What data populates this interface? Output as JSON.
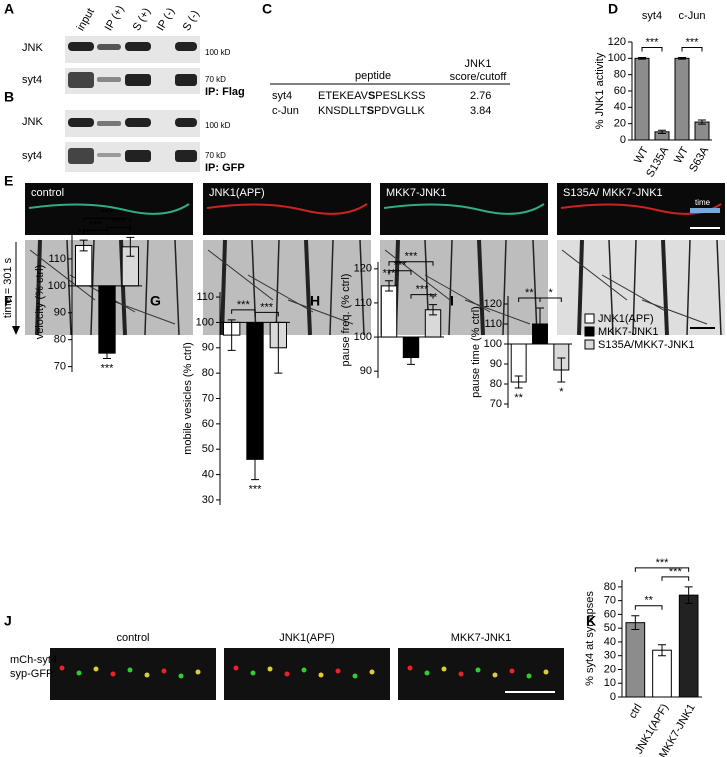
{
  "panel_labels": [
    "A",
    "B",
    "C",
    "D",
    "E",
    "F",
    "G",
    "H",
    "I",
    "J",
    "K"
  ],
  "blot_A": {
    "lanes": [
      "input",
      "IP (+)",
      "S (+)",
      "IP (-)",
      "S (-)"
    ],
    "rows": [
      "JNK",
      "syt4"
    ],
    "markers": [
      "100 kD",
      "70 kD"
    ],
    "note": "IP: Flag"
  },
  "blot_B": {
    "rows": [
      "JNK",
      "syt4"
    ],
    "markers": [
      "100 kD",
      "70 kD"
    ],
    "note": "IP: GFP"
  },
  "table_C": {
    "headers": [
      "peptide",
      "JNK1",
      "score/cutoff"
    ],
    "rows": [
      {
        "name": "syt4",
        "pre": "ETEKEAV",
        "site": "S",
        "post": "PESLKSS",
        "score": "2.76"
      },
      {
        "name": "c-Jun",
        "pre": "KNSDLLT",
        "site": "S",
        "post": "PDVGLLK",
        "score": "3.84"
      }
    ]
  },
  "panel_E": {
    "conditions": [
      "control",
      "JNK1(APF)",
      "MKK7-JNK1",
      "S135A/ MKK7-JNK1"
    ],
    "scale_label": "time",
    "time_label": "time = 301 s"
  },
  "panel_J": {
    "channels": [
      "mCh-syt4",
      "syp-GFP"
    ],
    "conditions": [
      "control",
      "JNK1(APF)",
      "MKK7-JNK1"
    ]
  },
  "chart_data": [
    {
      "type": "bar",
      "ylabel": "% JNK1 activity",
      "groups": [
        "syt4",
        "c-Jun"
      ],
      "categories": [
        "WT",
        "S135A",
        "WT",
        "S63A"
      ],
      "values": [
        100,
        10,
        100,
        22
      ],
      "errors": [
        1,
        2,
        1,
        2.5
      ],
      "colors": [
        "#8c8c8c",
        "#8c8c8c",
        "#8c8c8c",
        "#8c8c8c"
      ],
      "ylim": [
        0,
        120
      ],
      "yticks": [
        0,
        20,
        40,
        60,
        80,
        100,
        120
      ],
      "comparisons": [
        {
          "pair": [
            0,
            1
          ],
          "label": "***"
        },
        {
          "pair": [
            2,
            3
          ],
          "label": "***"
        }
      ],
      "rotate_labels": true
    },
    {
      "type": "bar",
      "ylabel": "velocity (% ctrl)",
      "categories": [
        "JNK1(APF)",
        "MKK7-JNK1",
        "S135A/MKK7-JNK1"
      ],
      "values": [
        115,
        75,
        114.5
      ],
      "errors": [
        2,
        2,
        3.5
      ],
      "colors": [
        "#ffffff",
        "#000000",
        "#d9d9d9"
      ],
      "baseline": 100,
      "ylim": [
        68,
        120
      ],
      "yticks": [
        70,
        80,
        90,
        100,
        110
      ],
      "bar_labels": [
        "***",
        "***",
        "*"
      ],
      "comparisons": [
        {
          "pair": [
            0,
            1
          ],
          "label": "***"
        },
        {
          "pair": [
            1,
            2
          ],
          "label": "***"
        },
        {
          "pair": [
            0,
            2
          ],
          "label": "***"
        }
      ],
      "legend": true
    },
    {
      "type": "bar",
      "ylabel": "mobile vesicles (% ctrl)",
      "values": [
        95,
        46,
        90
      ],
      "errors": [
        6,
        8,
        10
      ],
      "colors": [
        "#ffffff",
        "#000000",
        "#d9d9d9"
      ],
      "baseline": 100,
      "ylim": [
        28,
        112
      ],
      "yticks": [
        30,
        40,
        50,
        60,
        70,
        80,
        90,
        100,
        110
      ],
      "bar_labels": [
        null,
        "***",
        null
      ],
      "comparisons": [
        {
          "pair": [
            0,
            1
          ],
          "label": "***"
        },
        {
          "pair": [
            1,
            2
          ],
          "label": "***"
        }
      ]
    },
    {
      "type": "bar",
      "ylabel": "pause freq. (% ctrl)",
      "values": [
        115,
        94,
        108
      ],
      "errors": [
        1.5,
        2,
        1.5
      ],
      "colors": [
        "#ffffff",
        "#000000",
        "#d9d9d9"
      ],
      "baseline": 100,
      "ylim": [
        88,
        122
      ],
      "yticks": [
        90,
        100,
        110,
        120
      ],
      "bar_labels": [
        "***",
        null,
        "**"
      ],
      "comparisons": [
        {
          "pair": [
            0,
            1
          ],
          "label": "***"
        },
        {
          "pair": [
            1,
            2
          ],
          "label": "***"
        },
        {
          "pair": [
            0,
            2
          ],
          "label": "***"
        }
      ]
    },
    {
      "type": "bar",
      "ylabel": "pause time (% ctrl)",
      "values": [
        81,
        110,
        87
      ],
      "errors": [
        3,
        8,
        6
      ],
      "colors": [
        "#ffffff",
        "#000000",
        "#d9d9d9"
      ],
      "baseline": 100,
      "ylim": [
        68,
        124
      ],
      "yticks": [
        70,
        80,
        90,
        100,
        110,
        120
      ],
      "bar_labels": [
        "**",
        null,
        "*"
      ],
      "comparisons": [
        {
          "pair": [
            0,
            1
          ],
          "label": "**"
        },
        {
          "pair": [
            1,
            2
          ],
          "label": "*"
        }
      ]
    },
    {
      "type": "bar",
      "ylabel": "% syt4 at synapses",
      "categories": [
        "ctrl",
        "JNK1(APF)",
        "MKK7-JNK1"
      ],
      "values": [
        54,
        34,
        74
      ],
      "errors": [
        5,
        4,
        6
      ],
      "colors": [
        "#8c8c8c",
        "#ffffff",
        "#222222"
      ],
      "ylim": [
        0,
        85
      ],
      "yticks": [
        0,
        10,
        20,
        30,
        40,
        50,
        60,
        70,
        80
      ],
      "comparisons": [
        {
          "pair": [
            0,
            1
          ],
          "label": "**"
        },
        {
          "pair": [
            1,
            2
          ],
          "label": "***"
        },
        {
          "pair": [
            0,
            2
          ],
          "label": "***"
        }
      ],
      "rotate_labels": true
    }
  ]
}
